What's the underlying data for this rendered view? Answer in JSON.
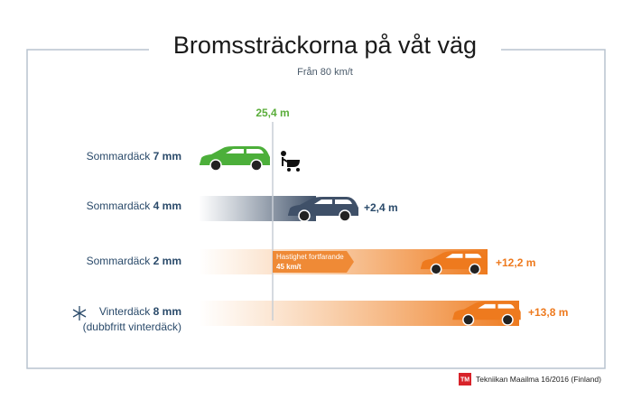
{
  "header": {
    "title": "Bromssträckorna på våt väg",
    "subtitle": "Från 80 km/t"
  },
  "reference": "25,4 m",
  "rows": [
    {
      "label": "Sommardäck",
      "size": "7 mm"
    },
    {
      "label": "Sommardäck",
      "size": "4 mm",
      "extra": "+2,4 m"
    },
    {
      "label": "Sommardäck",
      "size": "2 mm",
      "extra": "+12,2 m"
    },
    {
      "label": "Vinterdäck",
      "size": "8 mm",
      "note": "(dubbfritt vinterdäck)",
      "extra": "+13,8 m"
    }
  ],
  "annotation": {
    "line1": "Hastighet fortfarande",
    "line2": "45 km/t"
  },
  "source": {
    "logo": "TM",
    "text": "Tekniikan Maailma 16/2016 (Finland)"
  }
}
